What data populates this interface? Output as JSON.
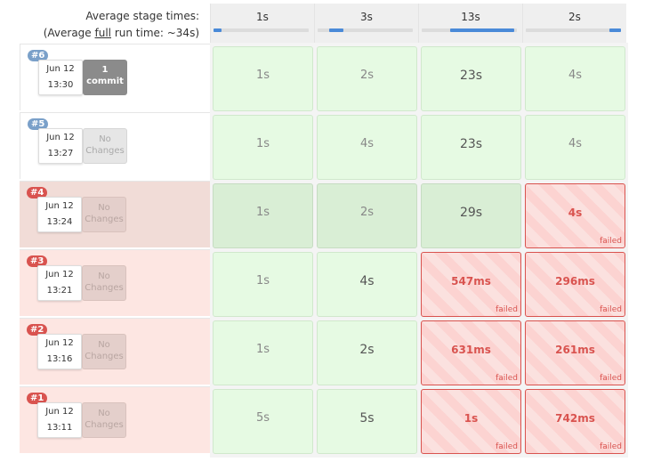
{
  "header": {
    "avg_stage_label": "Average stage times:",
    "avg_full_prefix": "(Average ",
    "avg_full_word": "full",
    "avg_full_suffix": " run time: ~34s)",
    "stages": [
      {
        "time": "1s",
        "progress_start": 0.0,
        "progress_end": 0.08
      },
      {
        "time": "3s",
        "progress_start": 0.12,
        "progress_end": 0.27
      },
      {
        "time": "13s",
        "progress_start": 0.3,
        "progress_end": 0.97
      },
      {
        "time": "2s",
        "progress_start": 0.88,
        "progress_end": 1.0
      }
    ]
  },
  "builds": [
    {
      "number": "#6",
      "date": "Jun 12",
      "time": "13:30",
      "changes_line1": "1",
      "changes_line2": "commit",
      "state": "ok",
      "stages": [
        {
          "value": "1s"
        },
        {
          "value": "2s"
        },
        {
          "value": "23s"
        },
        {
          "value": "4s"
        }
      ]
    },
    {
      "number": "#5",
      "date": "Jun 12",
      "time": "13:27",
      "changes_line1": "No",
      "changes_line2": "Changes",
      "state": "ok",
      "stages": [
        {
          "value": "1s"
        },
        {
          "value": "4s"
        },
        {
          "value": "23s"
        },
        {
          "value": "4s"
        }
      ]
    },
    {
      "number": "#4",
      "date": "Jun 12",
      "time": "13:24",
      "changes_line1": "No",
      "changes_line2": "Changes",
      "state": "partial",
      "stages": [
        {
          "value": "1s"
        },
        {
          "value": "2s"
        },
        {
          "value": "29s"
        },
        {
          "value": "4s",
          "status": "failed"
        }
      ]
    },
    {
      "number": "#3",
      "date": "Jun 12",
      "time": "13:21",
      "changes_line1": "No",
      "changes_line2": "Changes",
      "state": "fail",
      "stages": [
        {
          "value": "1s"
        },
        {
          "value": "4s"
        },
        {
          "value": "547ms",
          "status": "failed"
        },
        {
          "value": "296ms",
          "status": "failed"
        }
      ]
    },
    {
      "number": "#2",
      "date": "Jun 12",
      "time": "13:16",
      "changes_line1": "No",
      "changes_line2": "Changes",
      "state": "fail",
      "stages": [
        {
          "value": "1s"
        },
        {
          "value": "2s"
        },
        {
          "value": "631ms",
          "status": "failed"
        },
        {
          "value": "261ms",
          "status": "failed"
        }
      ]
    },
    {
      "number": "#1",
      "date": "Jun 12",
      "time": "13:11",
      "changes_line1": "No",
      "changes_line2": "Changes",
      "state": "fail",
      "stages": [
        {
          "value": "5s"
        },
        {
          "value": "5s"
        },
        {
          "value": "1s",
          "status": "failed"
        },
        {
          "value": "742ms",
          "status": "failed"
        }
      ]
    }
  ]
}
